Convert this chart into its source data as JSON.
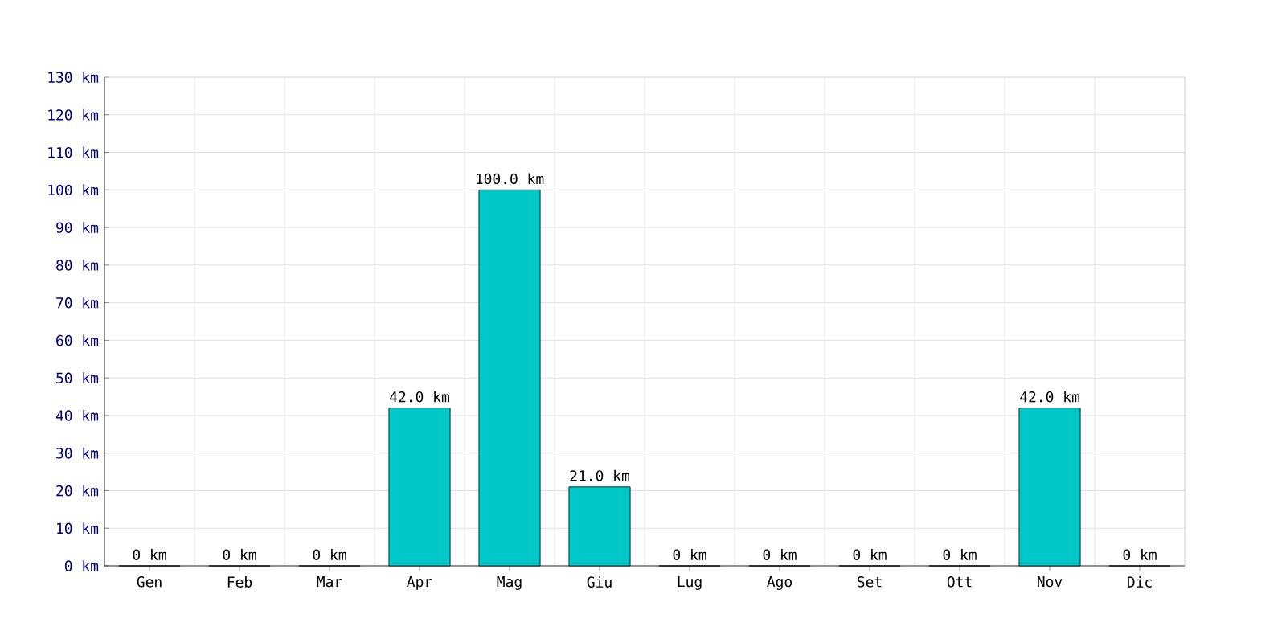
{
  "chart_data": {
    "type": "bar",
    "categories": [
      "Gen",
      "Feb",
      "Mar",
      "Apr",
      "Mag",
      "Giu",
      "Lug",
      "Ago",
      "Set",
      "Ott",
      "Nov",
      "Dic"
    ],
    "values": [
      0,
      0,
      0,
      42,
      100,
      21,
      0,
      0,
      0,
      0,
      42,
      0
    ],
    "value_labels": [
      "0 km",
      "0 km",
      "0 km",
      "42.0 km",
      "100.0 km",
      "21.0 km",
      "0 km",
      "0 km",
      "0 km",
      "0 km",
      "42.0 km",
      "0 km"
    ],
    "color": "#00c8c8",
    "ylim": [
      0,
      130
    ],
    "yticks": [
      {
        "value": 0,
        "label": "0 km"
      },
      {
        "value": 10,
        "label": "10 km"
      },
      {
        "value": 20,
        "label": "20 km"
      },
      {
        "value": 30,
        "label": "30 km"
      },
      {
        "value": 40,
        "label": "40 km"
      },
      {
        "value": 50,
        "label": "50 km"
      },
      {
        "value": 60,
        "label": "60 km"
      },
      {
        "value": 70,
        "label": "70 km"
      },
      {
        "value": 80,
        "label": "80 km"
      },
      {
        "value": 90,
        "label": "90 km"
      },
      {
        "value": 100,
        "label": "100 km"
      },
      {
        "value": 110,
        "label": "110 km"
      },
      {
        "value": 120,
        "label": "120 km"
      },
      {
        "value": 130,
        "label": "130 km"
      }
    ],
    "grid": true
  }
}
